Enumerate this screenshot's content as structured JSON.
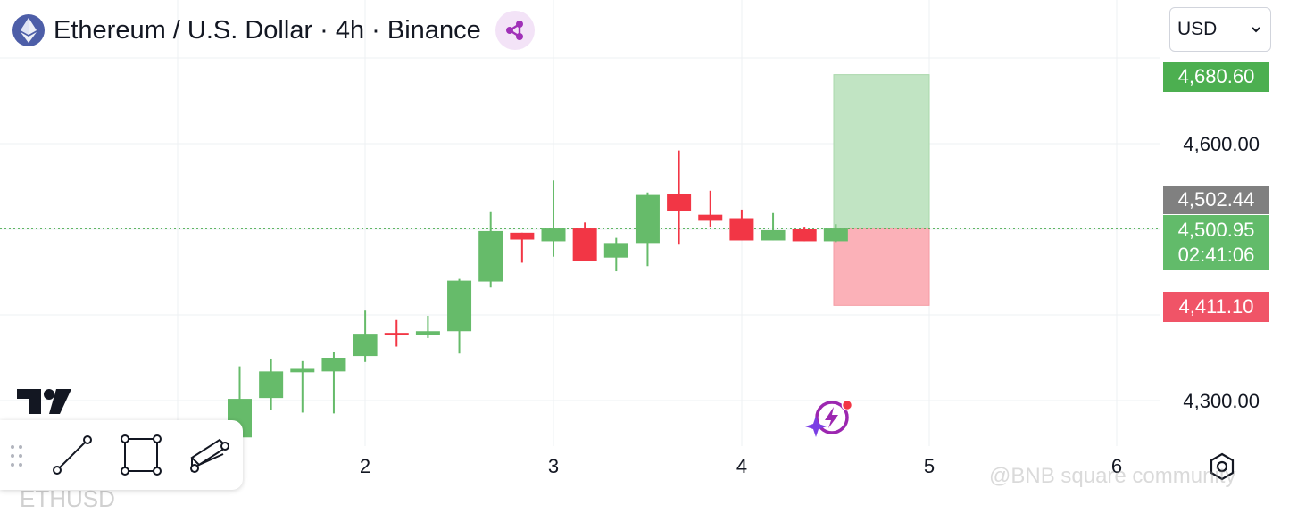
{
  "header": {
    "title": "Ethereum / U.S. Dollar · 4h · Binance"
  },
  "currency_select": {
    "value": "USD"
  },
  "price_tags": {
    "target": "4,680.60",
    "previous_close": "4,502.44",
    "last_price": "4,500.95",
    "countdown": "02:41:06",
    "stop": "4,411.10"
  },
  "watermark": "@BNB square community",
  "bottom_symbol": "ETHUSD",
  "colors": {
    "up": "#66bb6a",
    "down": "#f23645",
    "profit_zone": "#c1e4c3",
    "loss_zone": "#fbb1b8",
    "grid": "#eef0f3",
    "accent": "#9c27b0"
  },
  "chart_data": {
    "type": "candlestick",
    "title": "Ethereum / U.S. Dollar · 4h · Binance",
    "x_ticks": [
      "2",
      "3",
      "4",
      "5",
      "6"
    ],
    "y_ticks": [
      "4,300.00",
      "4,600.00"
    ],
    "ylim": [
      4230,
      4750
    ],
    "grid": true,
    "candles": [
      {
        "o": 4257,
        "h": 4340,
        "l": 4252,
        "c": 4302
      },
      {
        "o": 4303,
        "h": 4349,
        "l": 4289,
        "c": 4334
      },
      {
        "o": 4333,
        "h": 4346,
        "l": 4286,
        "c": 4337
      },
      {
        "o": 4334,
        "h": 4357,
        "l": 4285,
        "c": 4350
      },
      {
        "o": 4352,
        "h": 4405,
        "l": 4345,
        "c": 4378
      },
      {
        "o": 4379,
        "h": 4394,
        "l": 4363,
        "c": 4378
      },
      {
        "o": 4377,
        "h": 4399,
        "l": 4373,
        "c": 4381
      },
      {
        "o": 4381,
        "h": 4442,
        "l": 4355,
        "c": 4440
      },
      {
        "o": 4439,
        "h": 4520,
        "l": 4432,
        "c": 4498
      },
      {
        "o": 4496,
        "h": 4494,
        "l": 4461,
        "c": 4488
      },
      {
        "o": 4486,
        "h": 4557,
        "l": 4468,
        "c": 4501
      },
      {
        "o": 4501,
        "h": 4508,
        "l": 4464,
        "c": 4463
      },
      {
        "o": 4467,
        "h": 4490,
        "l": 4451,
        "c": 4484
      },
      {
        "o": 4484,
        "h": 4543,
        "l": 4457,
        "c": 4540
      },
      {
        "o": 4541,
        "h": 4592,
        "l": 4482,
        "c": 4521
      },
      {
        "o": 4517,
        "h": 4545,
        "l": 4503,
        "c": 4510
      },
      {
        "o": 4513,
        "h": 4523,
        "l": 4487,
        "c": 4487
      },
      {
        "o": 4487,
        "h": 4519,
        "l": 4488,
        "c": 4499
      },
      {
        "o": 4500,
        "h": 4503,
        "l": 4487,
        "c": 4486
      },
      {
        "o": 4486,
        "h": 4506,
        "l": 4485,
        "c": 4501
      }
    ],
    "last_price": 4500.95,
    "position": {
      "entry": 4500.95,
      "target": 4680.6,
      "stop": 4411.1
    }
  }
}
